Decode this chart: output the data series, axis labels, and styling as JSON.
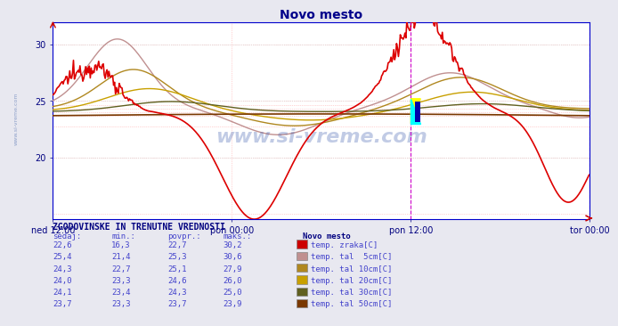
{
  "title": "Novo mesto",
  "title_color": "#00008b",
  "bg_color": "#e8e8f0",
  "plot_bg_color": "#ffffff",
  "ylim_min": 14,
  "ylim_max": 32,
  "watermark": "www.si-vreme.com",
  "left_watermark": "www.si-vreme.com",
  "x_labels": [
    "ned 12:00",
    "pon 00:00",
    "pon 12:00",
    "tor 00:00"
  ],
  "series_colors": [
    "#dd0000",
    "#c09090",
    "#b08820",
    "#c8a000",
    "#606020",
    "#7a3800"
  ],
  "series_lw": [
    1.2,
    1.0,
    1.0,
    1.0,
    1.0,
    1.2
  ],
  "table_header": "ZGODOVINSKE IN TRENUTNE VREDNOSTI",
  "col_headers": [
    "sedaj:",
    "min.:",
    "povpr.:",
    "maks.:"
  ],
  "legend_title": "Novo mesto",
  "table_rows": [
    {
      "sedaj": "22,6",
      "min": "16,3",
      "povpr": "22,7",
      "maks": "30,2",
      "color": "#cc0000",
      "label": "temp. zraka[C]"
    },
    {
      "sedaj": "25,4",
      "min": "21,4",
      "povpr": "25,3",
      "maks": "30,6",
      "color": "#c09090",
      "label": "temp. tal  5cm[C]"
    },
    {
      "sedaj": "24,3",
      "min": "22,7",
      "povpr": "25,1",
      "maks": "27,9",
      "color": "#b08820",
      "label": "temp. tal 10cm[C]"
    },
    {
      "sedaj": "24,0",
      "min": "23,3",
      "povpr": "24,6",
      "maks": "26,0",
      "color": "#c8a000",
      "label": "temp. tal 20cm[C]"
    },
    {
      "sedaj": "24,1",
      "min": "23,4",
      "povpr": "24,3",
      "maks": "25,0",
      "color": "#606020",
      "label": "temp. tal 30cm[C]"
    },
    {
      "sedaj": "23,7",
      "min": "23,3",
      "povpr": "23,7",
      "maks": "23,9",
      "color": "#7a3800",
      "label": "temp. tal 50cm[C]"
    }
  ]
}
